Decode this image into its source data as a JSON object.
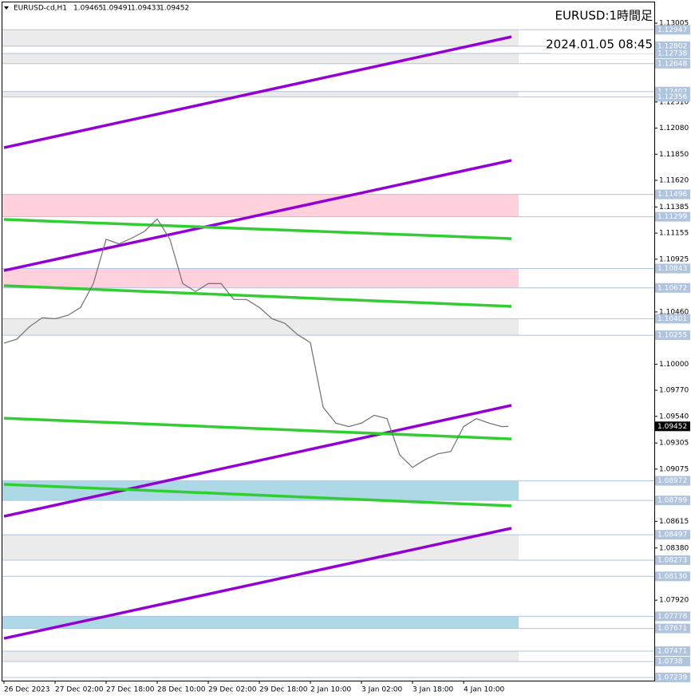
{
  "chart_data": {
    "type": "line",
    "symbol": "EURUSD-cd,H1",
    "ohlc": [
      1.09465,
      1.09491,
      1.09433,
      1.09452
    ],
    "title": "EURUSD:1時間足",
    "timestamp": "2024.01.05 08:45",
    "xlim": [
      -0.5,
      203.75
    ],
    "xticks": [
      {
        "value": 0,
        "label": "26 Dec 2023"
      },
      {
        "value": 16,
        "label": "27 Dec 02:00"
      },
      {
        "value": 32,
        "label": "27 Dec 18:00"
      },
      {
        "value": 48,
        "label": "28 Dec 10:00"
      },
      {
        "value": 64,
        "label": "29 Dec 02:00"
      },
      {
        "value": 80,
        "label": "29 Dec 18:00"
      },
      {
        "value": 96,
        "label": "2 Jan 10:00"
      },
      {
        "value": 112,
        "label": "3 Jan 02:00"
      },
      {
        "value": 128,
        "label": "3 Jan 18:00"
      },
      {
        "value": 144,
        "label": "4 Jan 10:00"
      }
    ],
    "ylim": [
      1.07211,
      1.13188
    ],
    "yticks": [
      1.13005,
      {
        "value": 1.1231,
        "label": "1.12310"
      },
      {
        "value": 1.1208,
        "label": "1.12080"
      },
      {
        "value": 1.1185,
        "label": "1.11850"
      },
      {
        "value": 1.1162,
        "label": "1.11620"
      },
      1.11385,
      1.11155,
      1.10925,
      {
        "value": 1.1046,
        "label": "1.10460"
      },
      {
        "value": 1.1,
        "label": "1.10000"
      },
      {
        "value": 1.0977,
        "label": "1.09770"
      },
      {
        "value": 1.0954,
        "label": "1.09540"
      },
      1.09305,
      1.09075,
      1.08615,
      {
        "value": 1.0838,
        "label": "1.08380"
      },
      {
        "value": 1.0792,
        "label": "1.07920"
      }
    ],
    "zones": [
      {
        "top": 1.12947,
        "bottom": 1.12802,
        "color": "#ebebeb"
      },
      {
        "top": 1.12738,
        "bottom": 1.12648,
        "color": "#ebebeb"
      },
      {
        "top": 1.12402,
        "bottom": 1.12356,
        "color": "#ebebeb"
      },
      {
        "top": 1.11496,
        "bottom": 1.11299,
        "color": "#ffd1dc"
      },
      {
        "top": 1.10843,
        "bottom": 1.10672,
        "color": "#ffd1dc"
      },
      {
        "top": 1.10401,
        "bottom": 1.10255,
        "color": "#ebebeb"
      },
      {
        "top": 1.08972,
        "bottom": 1.08799,
        "color": "#add8e6"
      },
      {
        "top": 1.08497,
        "bottom": 1.08273,
        "color": "#ebebeb"
      },
      {
        "top": 1.07778,
        "bottom": 1.07671,
        "color": "#add8e6"
      },
      {
        "top": 1.07471,
        "bottom": 1.0738,
        "color": "#ebebeb"
      }
    ],
    "levels": [
      {
        "value": 1.0813,
        "label": "1.08130"
      },
      1.07239
    ],
    "current_price": 1.09452,
    "trendlines": [
      {
        "color": "#9400d3",
        "x": [
          0,
          159
        ],
        "y": [
          1.11908,
          1.12885
        ]
      },
      {
        "color": "#9400d3",
        "x": [
          0,
          159
        ],
        "y": [
          1.10825,
          1.11796
        ]
      },
      {
        "color": "#9400d3",
        "x": [
          0,
          159
        ],
        "y": [
          1.08659,
          1.09637
        ]
      },
      {
        "color": "#9400d3",
        "x": [
          0,
          159
        ],
        "y": [
          1.07583,
          1.08554
        ]
      },
      {
        "color": "#32cd32",
        "x": [
          0,
          159
        ],
        "y": [
          1.11275,
          1.11106
        ]
      },
      {
        "color": "#32cd32",
        "x": [
          0,
          159
        ],
        "y": [
          1.10692,
          1.10509
        ]
      },
      {
        "color": "#32cd32",
        "x": [
          0,
          159
        ],
        "y": [
          1.09524,
          1.09341
        ]
      },
      {
        "color": "#32cd32",
        "x": [
          0,
          159
        ],
        "y": [
          1.08941,
          1.08751
        ]
      }
    ],
    "price_color": "#707070",
    "x": [
      0,
      4,
      8,
      12,
      16,
      20,
      24,
      28,
      32,
      36,
      40,
      44,
      48,
      52,
      56,
      60,
      64,
      68,
      72,
      76,
      80,
      84,
      88,
      92,
      96,
      100,
      104,
      108,
      112,
      116,
      120,
      124,
      128,
      132,
      136,
      140,
      144,
      148,
      152,
      156,
      158
    ],
    "values": [
      1.10185,
      1.1022,
      1.1033,
      1.1041,
      1.104,
      1.1043,
      1.105,
      1.1071,
      1.111,
      1.1106,
      1.1111,
      1.1117,
      1.1128,
      1.111,
      1.1071,
      1.1064,
      1.1071,
      1.1071,
      1.1057,
      1.1057,
      1.105,
      1.104,
      1.1036,
      1.1026,
      1.1019,
      1.0962,
      1.0948,
      1.0945,
      1.0948,
      1.0955,
      1.0952,
      1.092,
      1.0909,
      1.0916,
      1.0921,
      1.0923,
      1.0945,
      1.0952,
      1.0948,
      1.0945,
      1.09452
    ]
  }
}
